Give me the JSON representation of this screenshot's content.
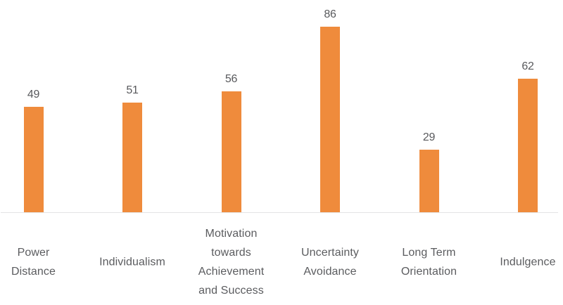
{
  "chart_data": {
    "type": "bar",
    "title": "",
    "xlabel": "",
    "ylabel": "",
    "categories": [
      "Power Distance",
      "Individualism",
      "Motivation towards Achievement and Success",
      "Uncertainty Avoidance",
      "Long Term Orientation",
      "Indulgence"
    ],
    "category_lines": [
      [
        "Power",
        "Distance"
      ],
      [
        "Individualism"
      ],
      [
        "Motivation",
        "towards",
        "Achievement",
        "and Success"
      ],
      [
        "Uncertainty",
        "Avoidance"
      ],
      [
        "Long Term",
        "Orientation"
      ],
      [
        "Indulgence"
      ]
    ],
    "values": [
      49,
      51,
      56,
      86,
      29,
      62
    ],
    "data_labels": [
      "49",
      "51",
      "56",
      "86",
      "29",
      "62"
    ],
    "ylim": [
      0,
      98
    ],
    "grid": false,
    "legend": false,
    "colors": {
      "bar": "#EF8B3C",
      "value_label": "#58595C",
      "category_label": "#5B5C5F",
      "axis_line": "#E4E4E5",
      "background": "#FFFFFF"
    }
  }
}
